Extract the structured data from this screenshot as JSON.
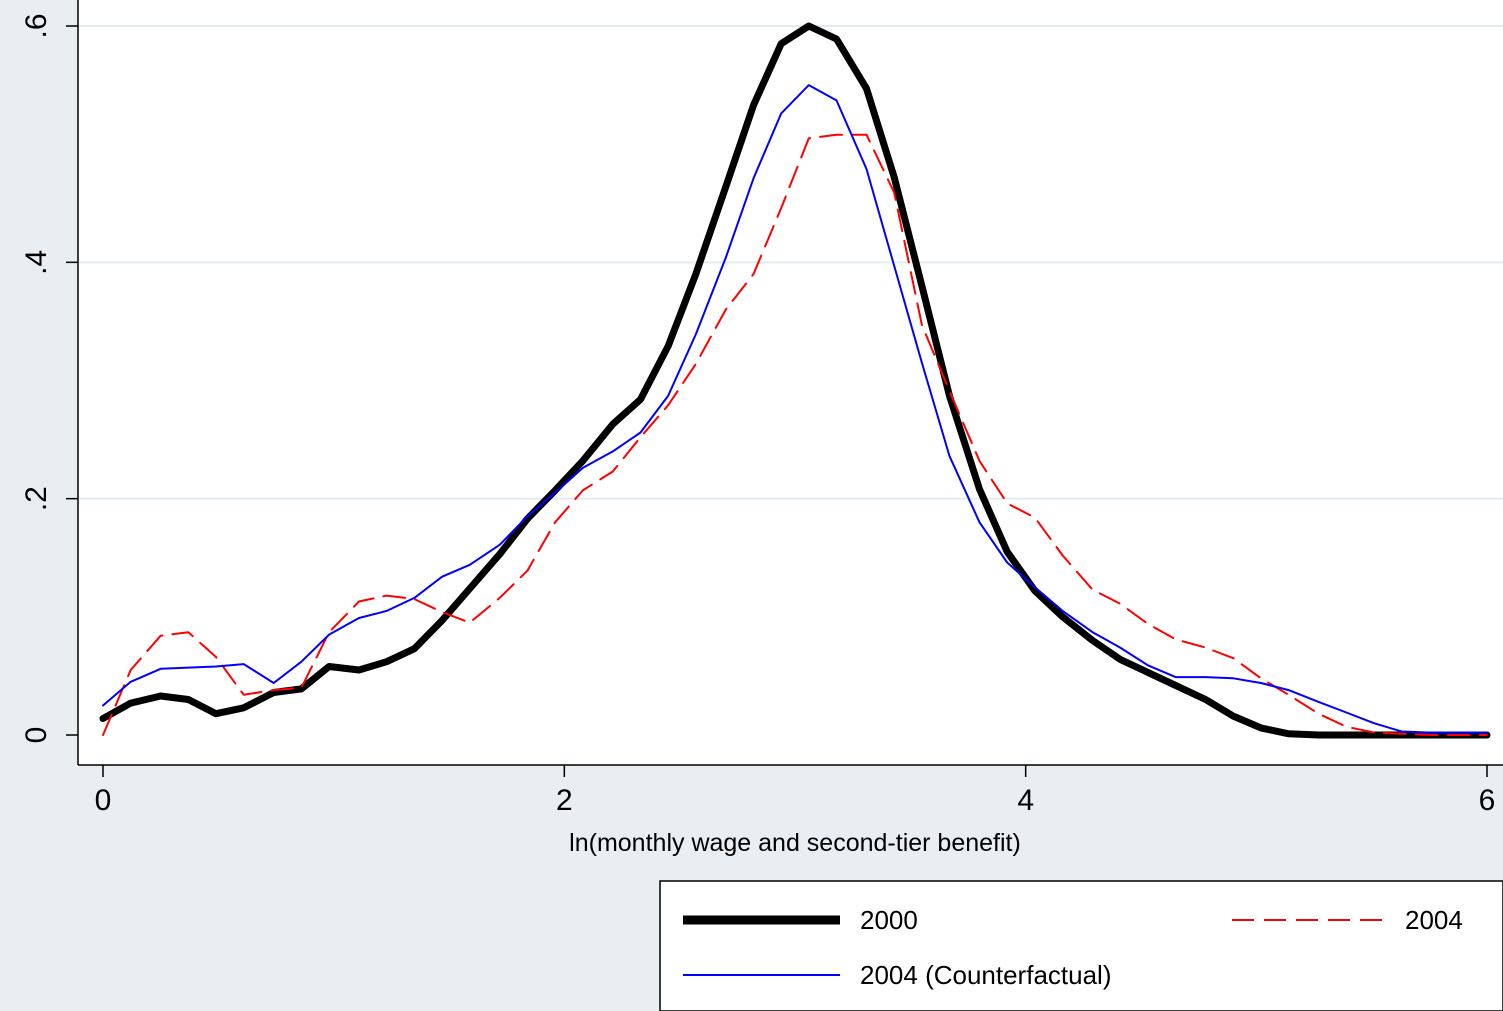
{
  "chart_data": {
    "type": "line",
    "title": "",
    "xlabel": "ln(monthly wage and second-tier benefit)",
    "ylabel": "",
    "xlim": [
      0,
      6
    ],
    "ylim": [
      0,
      0.6
    ],
    "x_ticks": [
      0,
      2,
      4,
      6
    ],
    "x_tick_labels": [
      "0",
      "2",
      "4",
      "6"
    ],
    "y_ticks": [
      0,
      0.2,
      0.4,
      0.6
    ],
    "y_tick_labels": [
      "0",
      ".2",
      ".4",
      ".6"
    ],
    "grid": "horizontal",
    "legend_position": "bottom-right",
    "colors": {
      "background": "#e8eef2",
      "plot_area": "#ffffff",
      "grid": "#e2ecf0"
    },
    "series": [
      {
        "name": "2000",
        "color": "#000000",
        "style": "solid-thick",
        "x": [
          0.0,
          0.12,
          0.25,
          0.37,
          0.49,
          0.61,
          0.74,
          0.86,
          0.98,
          1.11,
          1.23,
          1.35,
          1.47,
          1.59,
          1.72,
          1.84,
          1.96,
          2.08,
          2.21,
          2.33,
          2.45,
          2.57,
          2.7,
          2.82,
          2.94,
          3.06,
          3.18,
          3.31,
          3.43,
          3.55,
          3.67,
          3.8,
          3.92,
          4.04,
          4.16,
          4.29,
          4.41,
          4.53,
          4.65,
          4.78,
          4.9,
          5.02,
          5.14,
          5.27,
          5.39,
          5.51,
          5.63,
          5.76,
          5.88,
          6.0
        ],
        "y": [
          0.014,
          0.027,
          0.033,
          0.03,
          0.018,
          0.023,
          0.036,
          0.039,
          0.058,
          0.055,
          0.062,
          0.073,
          0.097,
          0.124,
          0.153,
          0.183,
          0.207,
          0.232,
          0.263,
          0.284,
          0.329,
          0.39,
          0.464,
          0.533,
          0.585,
          0.6,
          0.589,
          0.547,
          0.472,
          0.38,
          0.287,
          0.208,
          0.155,
          0.122,
          0.1,
          0.08,
          0.064,
          0.053,
          0.042,
          0.03,
          0.016,
          0.006,
          0.001,
          0.0,
          0.0,
          0.0,
          0.0,
          0.0,
          0.0,
          0.0
        ]
      },
      {
        "name": "2004",
        "color": "#ff0000",
        "style": "long-dash",
        "x": [
          0.0,
          0.12,
          0.25,
          0.37,
          0.49,
          0.61,
          0.74,
          0.86,
          0.98,
          1.11,
          1.23,
          1.35,
          1.47,
          1.59,
          1.72,
          1.84,
          1.96,
          2.08,
          2.21,
          2.33,
          2.45,
          2.57,
          2.7,
          2.82,
          2.94,
          3.06,
          3.18,
          3.31,
          3.43,
          3.55,
          3.67,
          3.8,
          3.92,
          4.04,
          4.16,
          4.29,
          4.41,
          4.53,
          4.65,
          4.78,
          4.9,
          5.02,
          5.14,
          5.27,
          5.39,
          5.51,
          5.63,
          5.76,
          5.88,
          6.0
        ],
        "y": [
          0.0,
          0.055,
          0.084,
          0.087,
          0.066,
          0.034,
          0.038,
          0.04,
          0.087,
          0.113,
          0.118,
          0.115,
          0.104,
          0.095,
          0.116,
          0.139,
          0.18,
          0.207,
          0.223,
          0.252,
          0.279,
          0.314,
          0.36,
          0.39,
          0.446,
          0.505,
          0.508,
          0.508,
          0.459,
          0.347,
          0.291,
          0.232,
          0.196,
          0.184,
          0.152,
          0.123,
          0.111,
          0.094,
          0.081,
          0.074,
          0.065,
          0.048,
          0.034,
          0.018,
          0.007,
          0.002,
          0.001,
          0.0,
          0.0,
          0.0
        ]
      },
      {
        "name": "2004 (Counterfactual)",
        "color": "#0000ff",
        "style": "solid-thin",
        "x": [
          0.0,
          0.12,
          0.25,
          0.37,
          0.49,
          0.61,
          0.74,
          0.86,
          0.98,
          1.11,
          1.23,
          1.35,
          1.47,
          1.59,
          1.72,
          1.84,
          1.96,
          2.08,
          2.21,
          2.33,
          2.45,
          2.57,
          2.7,
          2.82,
          2.94,
          3.06,
          3.18,
          3.31,
          3.43,
          3.55,
          3.67,
          3.8,
          3.92,
          4.04,
          4.16,
          4.29,
          4.41,
          4.53,
          4.65,
          4.78,
          4.9,
          5.02,
          5.14,
          5.27,
          5.39,
          5.51,
          5.63,
          5.76,
          5.88,
          6.0
        ],
        "y": [
          0.025,
          0.045,
          0.056,
          0.057,
          0.058,
          0.06,
          0.044,
          0.062,
          0.085,
          0.099,
          0.105,
          0.116,
          0.134,
          0.144,
          0.161,
          0.185,
          0.205,
          0.226,
          0.24,
          0.256,
          0.287,
          0.339,
          0.404,
          0.471,
          0.526,
          0.55,
          0.537,
          0.479,
          0.397,
          0.315,
          0.236,
          0.18,
          0.146,
          0.125,
          0.105,
          0.087,
          0.074,
          0.059,
          0.049,
          0.049,
          0.048,
          0.044,
          0.038,
          0.028,
          0.019,
          0.01,
          0.003,
          0.002,
          0.002,
          0.002
        ]
      }
    ]
  }
}
